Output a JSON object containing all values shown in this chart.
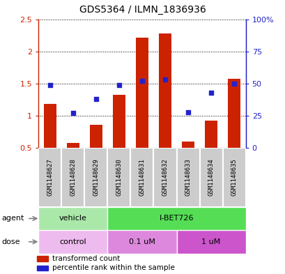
{
  "title": "GDS5364 / ILMN_1836936",
  "samples": [
    "GSM1148627",
    "GSM1148628",
    "GSM1148629",
    "GSM1148630",
    "GSM1148631",
    "GSM1148632",
    "GSM1148633",
    "GSM1148634",
    "GSM1148635"
  ],
  "bar_values": [
    1.18,
    0.58,
    0.86,
    1.32,
    2.21,
    2.28,
    0.6,
    0.93,
    1.57
  ],
  "dot_values": [
    49,
    27,
    38,
    49,
    52,
    53,
    28,
    43,
    50
  ],
  "ylim_left": [
    0.5,
    2.5
  ],
  "ylim_right": [
    0,
    100
  ],
  "yticks_left": [
    0.5,
    1.0,
    1.5,
    2.0,
    2.5
  ],
  "yticks_right": [
    0,
    25,
    50,
    75,
    100
  ],
  "ytick_labels_left": [
    "0.5",
    "1",
    "1.5",
    "2",
    "2.5"
  ],
  "ytick_labels_right": [
    "0",
    "25",
    "50",
    "75",
    "100%"
  ],
  "bar_color": "#cc2200",
  "dot_color": "#2222cc",
  "bar_width": 0.55,
  "agent_groups": [
    {
      "label": "vehicle",
      "start": 0,
      "end": 3,
      "color": "#aae8aa"
    },
    {
      "label": "I-BET726",
      "start": 3,
      "end": 9,
      "color": "#55dd55"
    }
  ],
  "dose_groups": [
    {
      "label": "control",
      "start": 0,
      "end": 3,
      "color": "#eebbee"
    },
    {
      "label": "0.1 uM",
      "start": 3,
      "end": 6,
      "color": "#dd88dd"
    },
    {
      "label": "1 uM",
      "start": 6,
      "end": 9,
      "color": "#cc55cc"
    }
  ],
  "legend_bar_label": "transformed count",
  "legend_dot_label": "percentile rank within the sample",
  "agent_label": "agent",
  "dose_label": "dose",
  "sample_box_color": "#cccccc",
  "sample_box_edge_color": "white"
}
